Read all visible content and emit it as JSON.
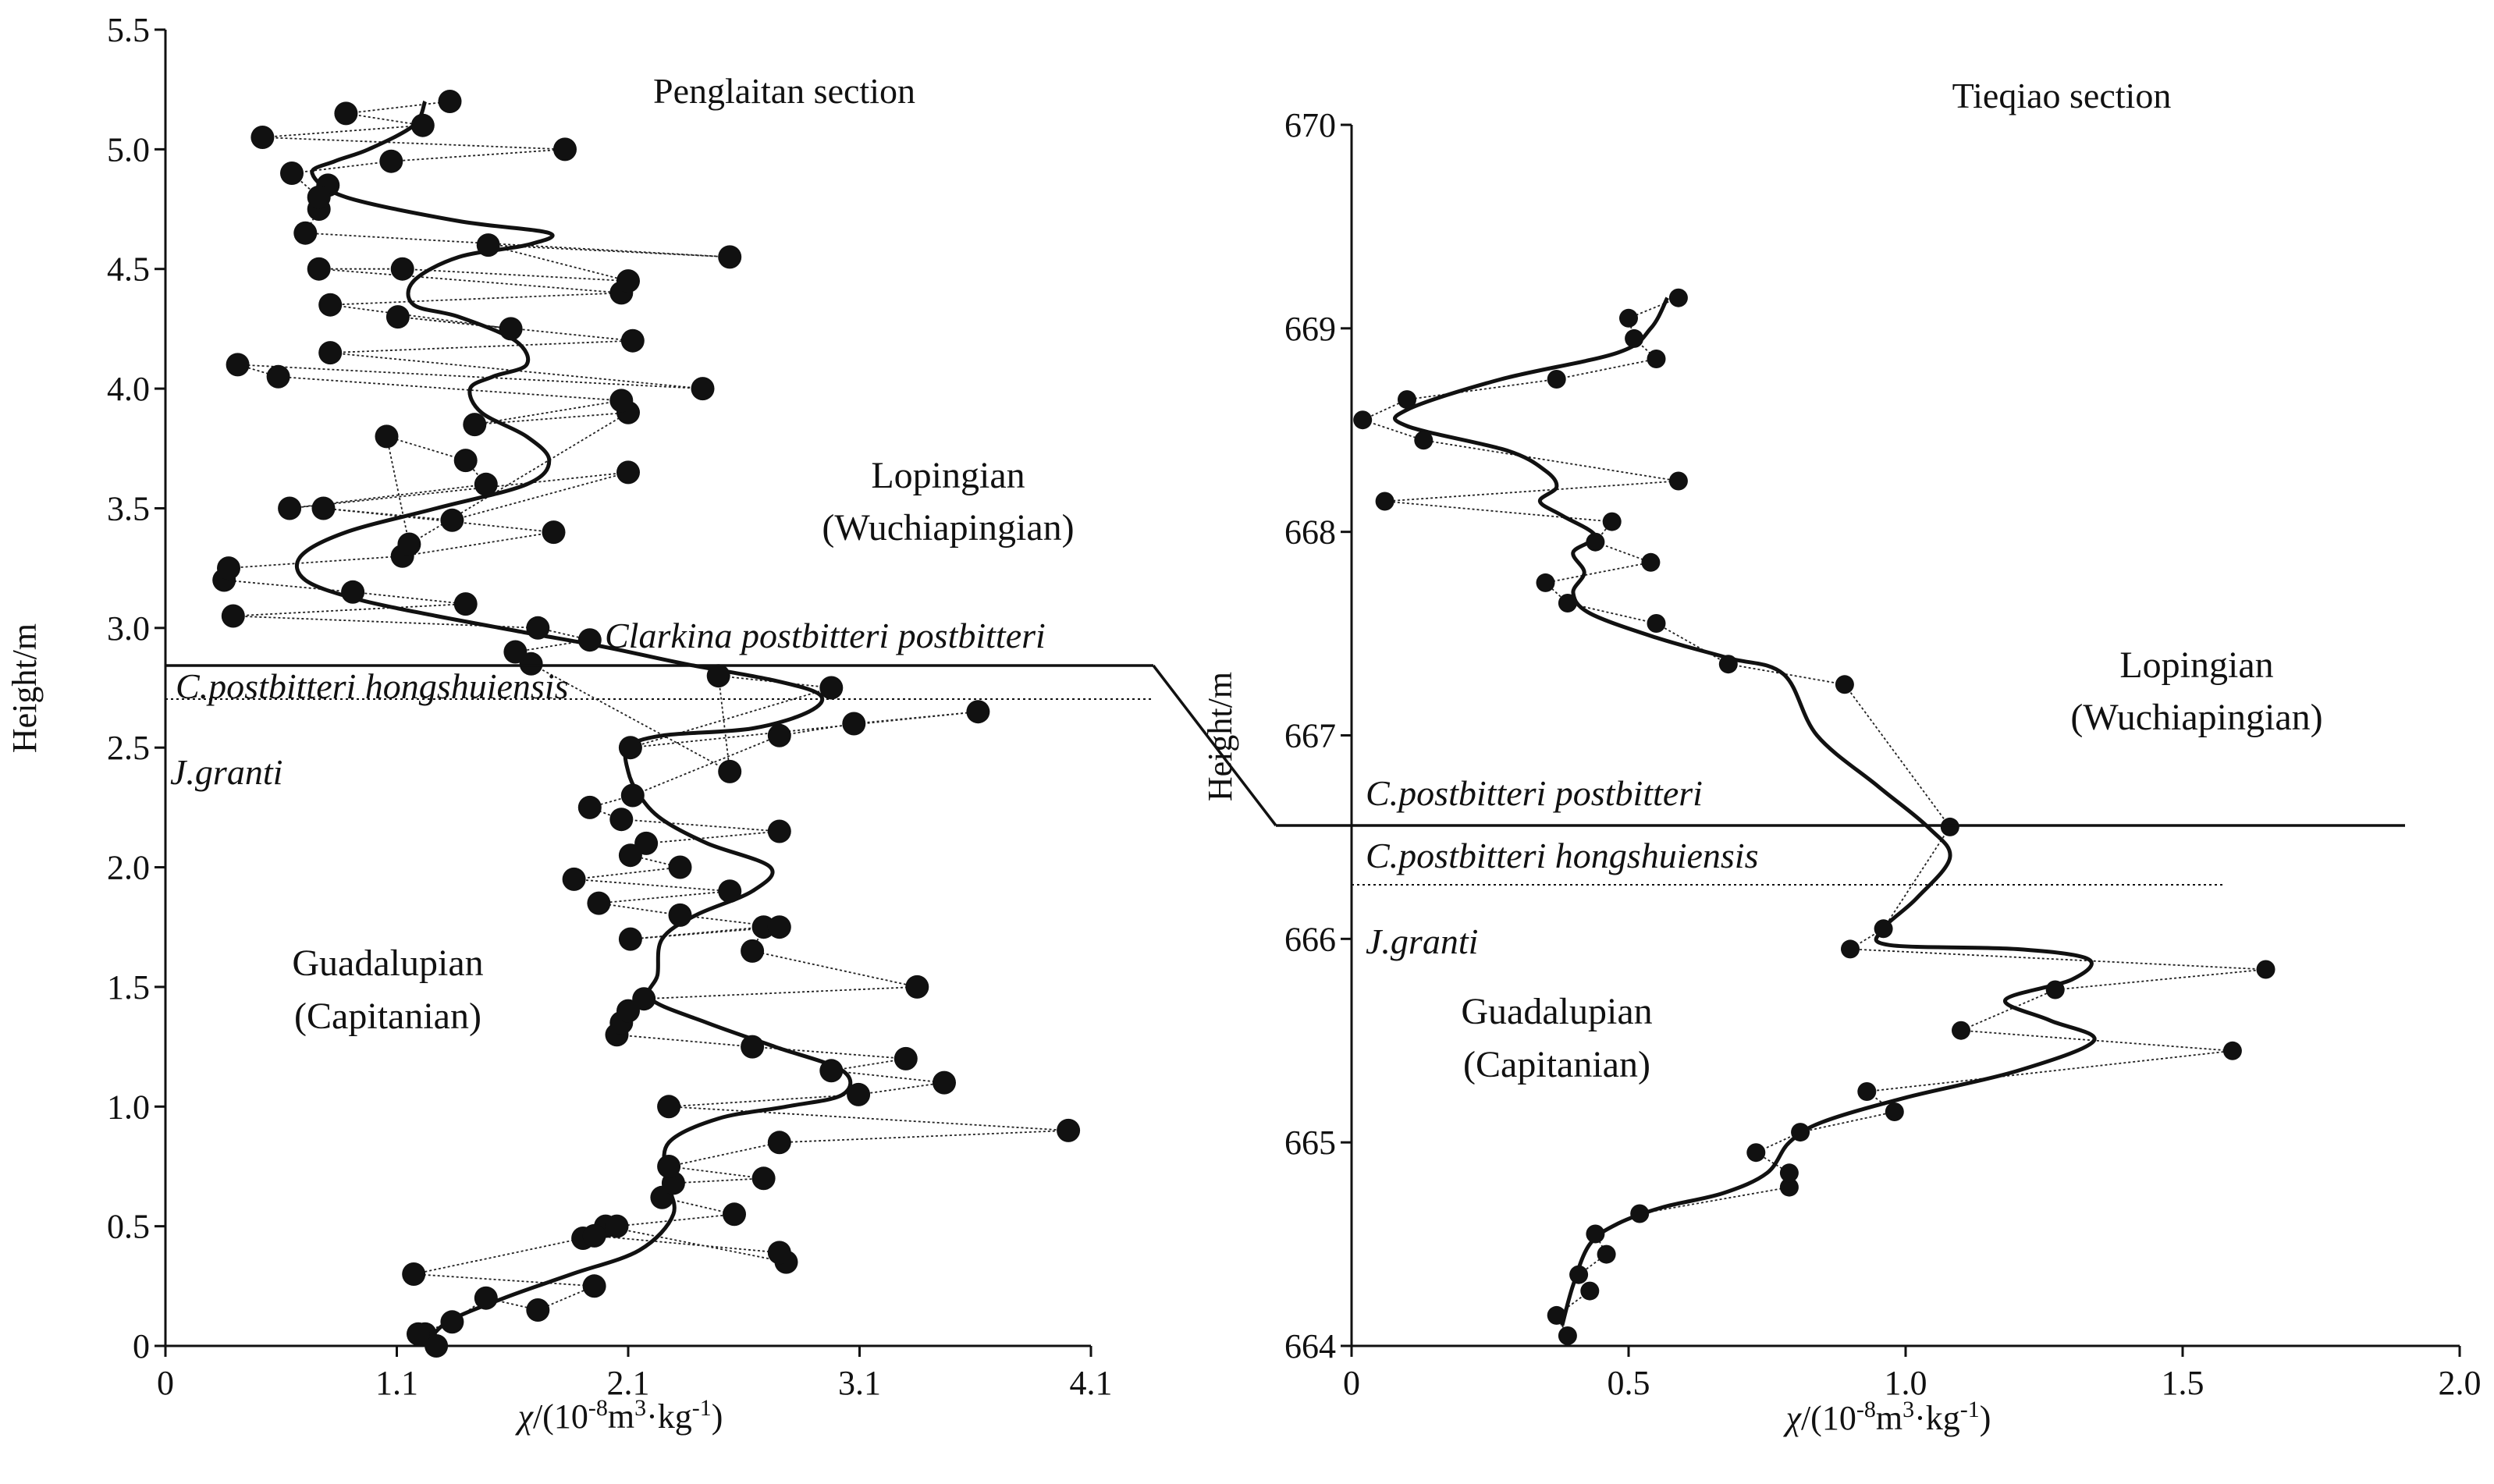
{
  "chart_data": [
    {
      "type": "scatter",
      "title": "Penglaitan section",
      "xlabel": "χ/(10-8m3·kg-1)",
      "ylabel": "Height/m",
      "xlim": [
        0,
        4.1
      ],
      "ylim": [
        0,
        5.5
      ],
      "xticks": [
        "0",
        "1.1",
        "2.1",
        "3.1",
        "4.1"
      ],
      "yticks": [
        "0",
        "0.5",
        "1.0",
        "1.5",
        "2.0",
        "2.5",
        "3.0",
        "3.5",
        "4.0",
        "4.5",
        "5.0",
        "5.5"
      ],
      "epochs": [
        {
          "line1": "Lopingian",
          "line2": "(Wuchiapingian)"
        },
        {
          "line1": "Guadalupian",
          "line2": "(Capitanian)"
        }
      ],
      "zones": [
        "Clarkina postbitteri postbitteri",
        "C.postbitteri hongshuiensis",
        "J.granti"
      ],
      "boundaries": [
        2.84,
        2.7
      ],
      "series": [
        {
          "style": "points",
          "x": [
            1.2,
            1.15,
            1.12,
            1.27,
            1.42,
            1.65,
            1.9,
            1.1,
            1.85,
            1.95,
            2.75,
            2.72,
            1.9,
            2.0,
            2.52,
            2.2,
            2.25,
            2.65,
            2.23,
            2.72,
            4.0,
            2.23,
            3.07,
            3.45,
            2.95,
            3.28,
            2.6,
            2.0,
            2.02,
            2.05,
            2.12,
            3.33,
            2.6,
            2.65,
            2.06,
            2.72,
            2.28,
            1.92,
            2.5,
            1.81,
            2.28,
            2.06,
            2.13,
            2.72,
            2.02,
            1.88,
            2.07,
            2.72,
            3.05,
            3.6,
            2.06,
            2.95,
            2.45,
            2.5,
            1.62,
            1.55,
            1.88,
            1.65,
            0.3,
            1.33,
            0.83,
            0.26,
            0.28,
            1.05,
            1.72,
            0.7,
            1.27,
            2.05,
            0.55,
            1.42,
            1.33,
            0.98,
            1.08,
            2.05,
            1.37,
            2.02,
            0.5,
            0.32,
            2.38,
            0.73,
            2.07,
            1.03,
            1.53,
            0.73,
            2.02,
            0.68,
            1.05,
            2.05,
            1.43,
            2.5,
            0.62,
            0.68,
            0.72,
            0.68,
            0.56,
            1.0,
            1.77,
            0.43,
            1.14,
            0.8,
            1.26
          ],
          "y": [
            0.0,
            0.05,
            0.05,
            0.1,
            0.2,
            0.15,
            0.25,
            0.3,
            0.45,
            0.5,
            0.35,
            0.39,
            0.46,
            0.5,
            0.55,
            0.62,
            0.68,
            0.7,
            0.75,
            0.85,
            0.9,
            1.0,
            1.05,
            1.1,
            1.15,
            1.2,
            1.25,
            1.3,
            1.35,
            1.4,
            1.45,
            1.5,
            1.65,
            1.75,
            1.7,
            1.75,
            1.8,
            1.85,
            1.9,
            1.95,
            2.0,
            2.05,
            2.1,
            2.15,
            2.2,
            2.25,
            2.3,
            2.55,
            2.6,
            2.65,
            2.5,
            2.75,
            2.8,
            2.4,
            2.85,
            2.9,
            2.95,
            3.0,
            3.05,
            3.1,
            3.15,
            3.2,
            3.25,
            3.3,
            3.4,
            3.5,
            3.45,
            3.65,
            3.5,
            3.6,
            3.7,
            3.8,
            3.35,
            3.9,
            3.85,
            3.95,
            4.05,
            4.1,
            4.0,
            4.15,
            4.2,
            4.3,
            4.25,
            4.35,
            4.4,
            4.5,
            4.5,
            4.45,
            4.6,
            4.55,
            4.65,
            4.75,
            4.85,
            4.8,
            4.9,
            4.95,
            5.0,
            5.05,
            5.1,
            5.15,
            5.2
          ]
        },
        {
          "style": "smoothed-line",
          "x": [
            1.15,
            1.25,
            1.5,
            1.8,
            2.1,
            2.25,
            2.22,
            2.23,
            2.45,
            2.75,
            3.0,
            3.0,
            2.7,
            2.4,
            2.15,
            2.18,
            2.2,
            2.35,
            2.6,
            2.68,
            2.4,
            2.2,
            2.1,
            2.05,
            2.05,
            2.2,
            2.6,
            2.85,
            2.9,
            2.7,
            2.3,
            1.95,
            1.6,
            1.2,
            0.85,
            0.62,
            0.6,
            0.8,
            1.2,
            1.6,
            1.7,
            1.6,
            1.4,
            1.35,
            1.45,
            1.6,
            1.55,
            1.3,
            1.1,
            1.1,
            1.3,
            1.6,
            1.7,
            1.3,
            0.8,
            0.65,
            0.75,
            0.9,
            1.1,
            1.15
          ],
          "y": [
            0.0,
            0.1,
            0.2,
            0.3,
            0.4,
            0.55,
            0.7,
            0.85,
            0.95,
            1.0,
            1.05,
            1.15,
            1.25,
            1.35,
            1.45,
            1.55,
            1.7,
            1.8,
            1.9,
            2.0,
            2.1,
            2.2,
            2.3,
            2.4,
            2.5,
            2.55,
            2.58,
            2.65,
            2.72,
            2.78,
            2.85,
            2.92,
            2.98,
            3.05,
            3.12,
            3.2,
            3.3,
            3.4,
            3.5,
            3.6,
            3.7,
            3.8,
            3.9,
            4.0,
            4.05,
            4.1,
            4.2,
            4.3,
            4.35,
            4.45,
            4.55,
            4.6,
            4.65,
            4.7,
            4.8,
            4.9,
            4.95,
            5.0,
            5.1,
            5.2
          ]
        }
      ]
    },
    {
      "type": "scatter",
      "title": "Tieqiao section",
      "xlabel": "χ/(10-8m3·kg-1)",
      "ylabel": "Height/m",
      "xlim": [
        0,
        2.0
      ],
      "ylim": [
        664,
        670
      ],
      "xticks": [
        "0",
        "0.5",
        "1.0",
        "1.5",
        "2.0"
      ],
      "yticks": [
        "664",
        "665",
        "666",
        "667",
        "668",
        "669",
        "670"
      ],
      "epochs": [
        {
          "line1": "Lopingian",
          "line2": "(Wuchiapingian)"
        },
        {
          "line1": "Guadalupian",
          "line2": "(Capitanian)"
        }
      ],
      "zones": [
        "C.postbitteri postbitteri",
        "C.postbitteri hongshuiensis",
        "J.granti"
      ],
      "boundaries": [
        666.57,
        666.28
      ],
      "series": [
        {
          "style": "points",
          "x": [
            0.39,
            0.37,
            0.43,
            0.41,
            0.46,
            0.44,
            0.52,
            0.79,
            0.79,
            0.73,
            0.81,
            0.98,
            0.93,
            1.59,
            1.1,
            1.27,
            1.65,
            0.9,
            0.96,
            1.08,
            0.89,
            0.68,
            0.55,
            0.39,
            0.35,
            0.54,
            0.44,
            0.47,
            0.06,
            0.59,
            0.13,
            0.02,
            0.1,
            0.37,
            0.55,
            0.51,
            0.5,
            0.59
          ],
          "y": [
            664.05,
            664.15,
            664.27,
            664.35,
            664.45,
            664.55,
            664.65,
            664.78,
            664.85,
            664.95,
            665.05,
            665.15,
            665.25,
            665.45,
            665.55,
            665.75,
            665.85,
            665.95,
            666.05,
            666.55,
            667.25,
            667.35,
            667.55,
            667.65,
            667.75,
            667.85,
            667.95,
            668.05,
            668.15,
            668.25,
            668.45,
            668.55,
            668.65,
            668.75,
            668.85,
            668.95,
            669.05,
            669.15
          ]
        },
        {
          "style": "smoothed-line",
          "x": [
            0.38,
            0.4,
            0.43,
            0.48,
            0.56,
            0.67,
            0.75,
            0.79,
            0.85,
            1.0,
            1.2,
            1.34,
            1.26,
            1.18,
            1.3,
            1.33,
            1.2,
            0.97,
            0.96,
            1.02,
            1.08,
            1.04,
            0.95,
            0.84,
            0.78,
            0.68,
            0.55,
            0.43,
            0.4,
            0.42,
            0.4,
            0.44,
            0.38,
            0.34,
            0.37,
            0.35,
            0.28,
            0.1,
            0.1,
            0.27,
            0.48,
            0.54,
            0.57
          ],
          "y": [
            664.1,
            664.3,
            664.5,
            664.6,
            664.68,
            664.75,
            664.85,
            665.0,
            665.1,
            665.22,
            665.35,
            665.5,
            665.6,
            665.7,
            665.8,
            665.9,
            665.95,
            665.97,
            666.05,
            666.2,
            666.4,
            666.55,
            666.75,
            667.0,
            667.3,
            667.38,
            667.48,
            667.6,
            667.7,
            667.8,
            667.9,
            667.98,
            668.08,
            668.15,
            668.22,
            668.3,
            668.4,
            668.52,
            668.6,
            668.75,
            668.88,
            669.0,
            669.15
          ]
        }
      ]
    }
  ]
}
